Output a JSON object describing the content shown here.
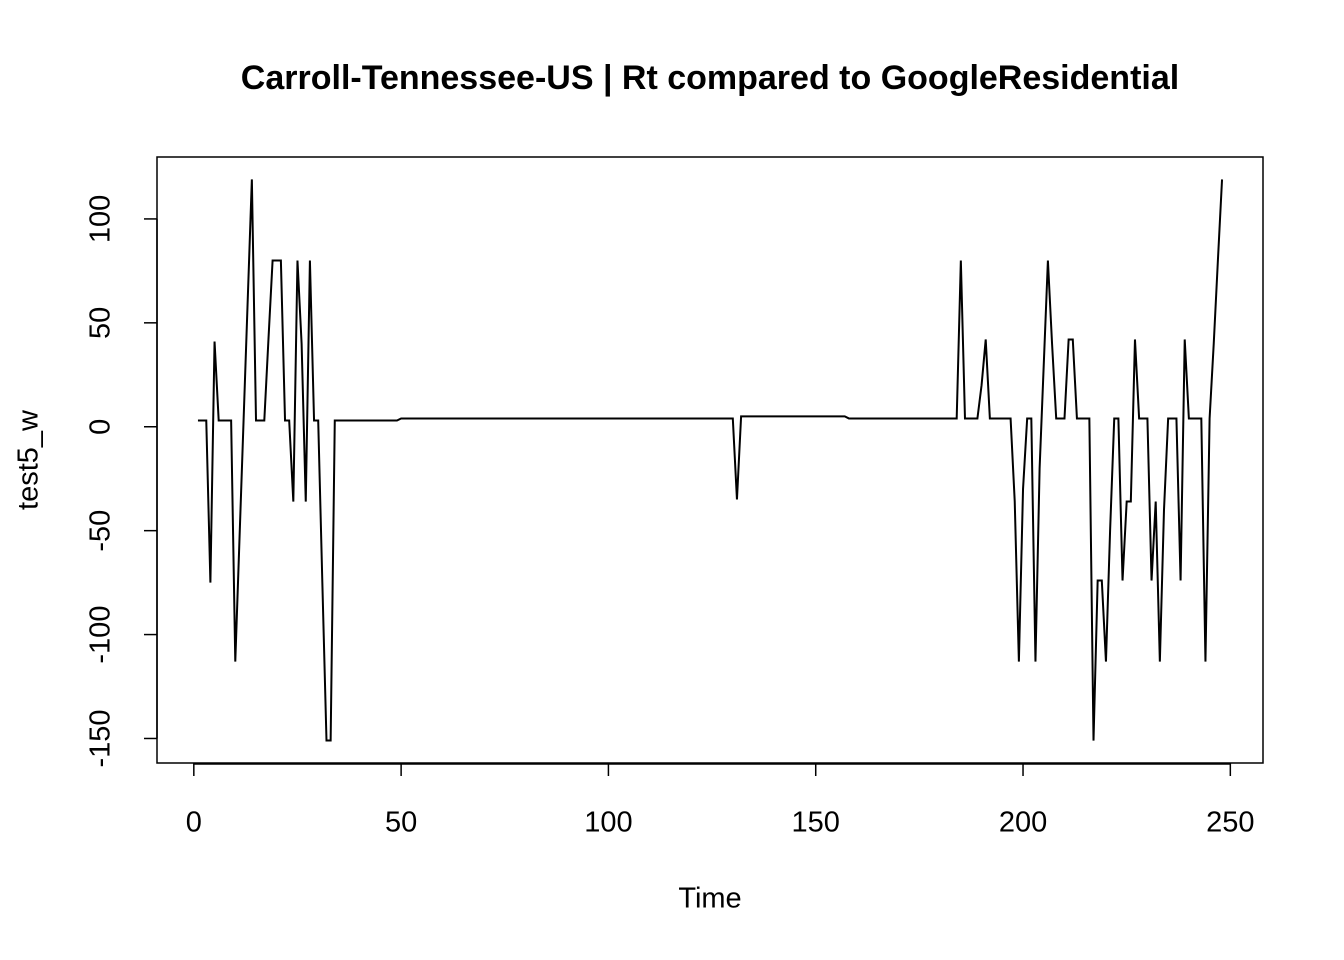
{
  "chart_data": {
    "type": "line",
    "title": "Carroll-Tennessee-US | Rt compared to GoogleResidential",
    "xlabel": "Time",
    "ylabel": "test5_w",
    "xlim": [
      -8.88,
      257.88
    ],
    "ylim": [
      -161.8,
      129.8
    ],
    "xticks": [
      0,
      50,
      100,
      150,
      200,
      250
    ],
    "yticks": [
      -150,
      -100,
      -50,
      0,
      50,
      100
    ],
    "color": "#000000",
    "x": [
      1,
      2,
      3,
      4,
      5,
      6,
      7,
      8,
      9,
      10,
      11,
      12,
      13,
      14,
      15,
      16,
      17,
      18,
      19,
      20,
      21,
      22,
      23,
      24,
      25,
      26,
      27,
      28,
      29,
      30,
      31,
      32,
      33,
      34,
      35,
      36,
      37,
      38,
      39,
      40,
      41,
      42,
      43,
      44,
      45,
      46,
      47,
      48,
      49,
      50,
      51,
      52,
      53,
      54,
      55,
      56,
      57,
      58,
      59,
      60,
      61,
      62,
      63,
      64,
      65,
      66,
      67,
      68,
      69,
      70,
      71,
      72,
      73,
      74,
      75,
      76,
      77,
      78,
      79,
      80,
      81,
      82,
      83,
      84,
      85,
      86,
      87,
      88,
      89,
      90,
      91,
      92,
      93,
      94,
      95,
      96,
      97,
      98,
      99,
      100,
      101,
      102,
      103,
      104,
      105,
      106,
      107,
      108,
      109,
      110,
      111,
      112,
      113,
      114,
      115,
      116,
      117,
      118,
      119,
      120,
      121,
      122,
      123,
      124,
      125,
      126,
      127,
      128,
      129,
      130,
      131,
      132,
      133,
      134,
      135,
      136,
      137,
      138,
      139,
      140,
      141,
      142,
      143,
      144,
      145,
      146,
      147,
      148,
      149,
      150,
      151,
      152,
      153,
      154,
      155,
      156,
      157,
      158,
      159,
      160,
      161,
      162,
      163,
      164,
      165,
      166,
      167,
      168,
      169,
      170,
      171,
      172,
      173,
      174,
      175,
      176,
      177,
      178,
      179,
      180,
      181,
      182,
      183,
      184,
      185,
      186,
      187,
      188,
      189,
      190,
      191,
      192,
      193,
      194,
      195,
      196,
      197,
      198,
      199,
      200,
      201,
      202,
      203,
      204,
      205,
      206,
      207,
      208,
      209,
      210,
      211,
      212,
      213,
      214,
      215,
      216,
      217,
      218,
      219,
      220,
      221,
      222,
      223,
      224,
      225,
      226,
      227,
      228,
      229,
      230,
      231,
      232,
      233,
      234,
      235,
      236,
      237,
      238,
      239,
      240,
      241,
      242,
      243,
      244,
      245,
      246,
      247,
      248
    ],
    "values": [
      3,
      3,
      3,
      -75,
      41,
      3,
      3,
      3,
      3,
      -113,
      -55,
      3,
      61,
      119,
      3,
      3,
      3,
      42,
      80,
      80,
      80,
      3,
      3,
      -36,
      80,
      40,
      -36,
      80,
      3,
      3,
      -75,
      -151,
      -151,
      3,
      3,
      3,
      3,
      3,
      3,
      3,
      3,
      3,
      3,
      3,
      3,
      3,
      3,
      3,
      3,
      4,
      4,
      4,
      4,
      4,
      4,
      4,
      4,
      4,
      4,
      4,
      4,
      4,
      4,
      4,
      4,
      4,
      4,
      4,
      4,
      4,
      4,
      4,
      4,
      4,
      4,
      4,
      4,
      4,
      4,
      4,
      4,
      4,
      4,
      4,
      4,
      4,
      4,
      4,
      4,
      4,
      4,
      4,
      4,
      4,
      4,
      4,
      4,
      4,
      4,
      4,
      4,
      4,
      4,
      4,
      4,
      4,
      4,
      4,
      4,
      4,
      4,
      4,
      4,
      4,
      4,
      4,
      4,
      4,
      4,
      4,
      4,
      4,
      4,
      4,
      4,
      4,
      4,
      4,
      4,
      4,
      -35,
      5,
      5,
      5,
      5,
      5,
      5,
      5,
      5,
      5,
      5,
      5,
      5,
      5,
      5,
      5,
      5,
      5,
      5,
      5,
      5,
      5,
      5,
      5,
      5,
      5,
      5,
      4,
      4,
      4,
      4,
      4,
      4,
      4,
      4,
      4,
      4,
      4,
      4,
      4,
      4,
      4,
      4,
      4,
      4,
      4,
      4,
      4,
      4,
      4,
      4,
      4,
      4,
      4,
      80,
      4,
      4,
      4,
      4,
      20,
      42,
      4,
      4,
      4,
      4,
      4,
      4,
      -36,
      -113,
      -30,
      4,
      4,
      -113,
      -20,
      30,
      80,
      40,
      4,
      4,
      4,
      42,
      42,
      4,
      4,
      4,
      4,
      -151,
      -74,
      -74,
      -113,
      -50,
      4,
      4,
      -74,
      -36,
      -36,
      42,
      4,
      4,
      4,
      -74,
      -36,
      -113,
      -40,
      4,
      4,
      4,
      -74,
      42,
      4,
      4,
      4,
      4,
      -113,
      4,
      40,
      80,
      119
    ]
  }
}
